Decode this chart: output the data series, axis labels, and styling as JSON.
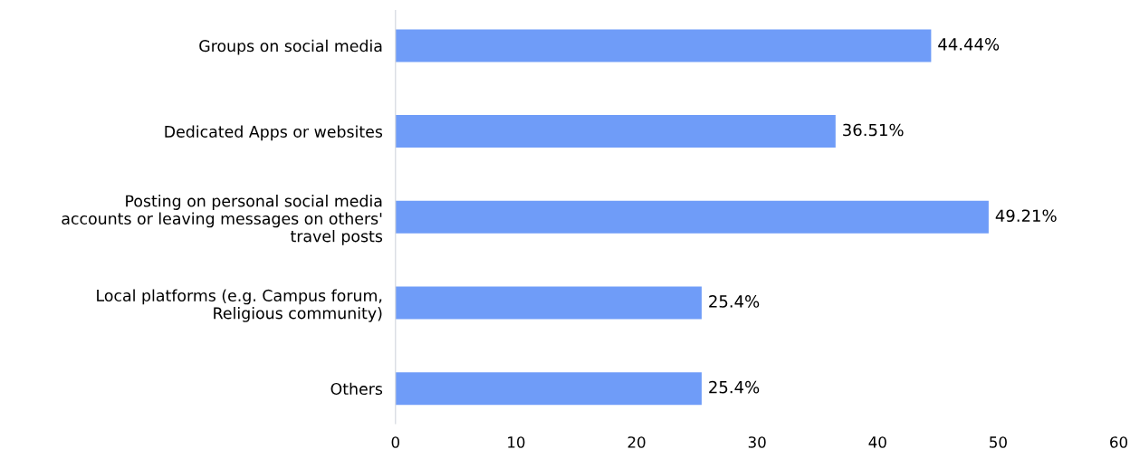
{
  "chart_data": {
    "type": "bar",
    "orientation": "horizontal",
    "categories": [
      "Groups on social media",
      "Dedicated Apps or websites",
      "Posting on personal social media\naccounts or leaving messages on others'\ntravel posts",
      "Local platforms (e.g. Campus forum,\nReligious community)",
      "Others"
    ],
    "values": [
      44.44,
      36.51,
      49.21,
      25.4,
      25.4
    ],
    "value_labels": [
      "44.44%",
      "36.51%",
      "49.21%",
      "25.4%",
      "25.4%"
    ],
    "color": "#6f9cf8",
    "xlim": [
      0,
      60
    ],
    "xticks": [
      0,
      10,
      20,
      30,
      40,
      50,
      60
    ],
    "grid": false,
    "legend": false
  }
}
